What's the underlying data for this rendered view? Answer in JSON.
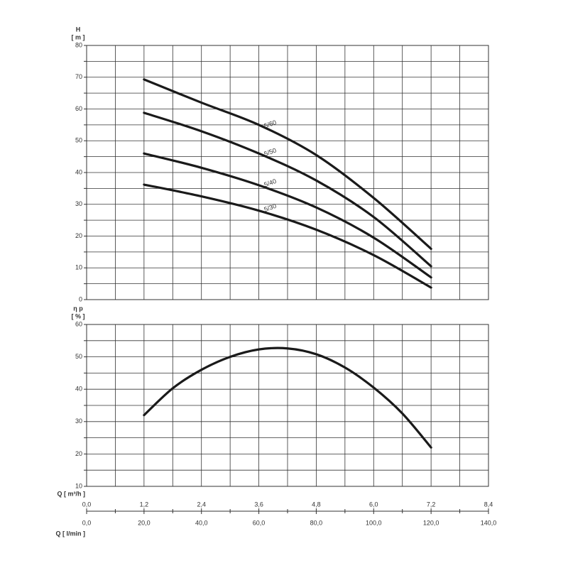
{
  "chart_data": [
    {
      "type": "line",
      "y_label_1": "H",
      "y_label_2": "[ m ]",
      "x": [
        1.2,
        2.4,
        3.6,
        4.8,
        6.0,
        7.2
      ],
      "series": [
        {
          "name": "5/60",
          "color": "#1a1a1a",
          "values": [
            69.3,
            62,
            55,
            45.5,
            32,
            16
          ]
        },
        {
          "name": "5/50",
          "color": "#1a1a1a",
          "values": [
            58.8,
            53,
            46,
            37.5,
            26,
            10.5
          ]
        },
        {
          "name": "5/40",
          "color": "#1a1a1a",
          "values": [
            46,
            41.5,
            36,
            29,
            19.5,
            7
          ]
        },
        {
          "name": "5/30",
          "color": "#1a1a1a",
          "values": [
            36.2,
            32.5,
            28,
            22,
            14,
            3.8
          ]
        }
      ],
      "xlim": [
        0,
        8.4
      ],
      "xticks": [
        0,
        1.2,
        2.4,
        3.6,
        4.8,
        6.0,
        7.2,
        8.4
      ],
      "ylim": [
        0,
        80
      ],
      "yticks": [
        0,
        10,
        20,
        30,
        40,
        50,
        60,
        70,
        80
      ],
      "grid": true
    },
    {
      "type": "line",
      "y_label_1": "η p",
      "y_label_2": "[ % ]",
      "x": [
        1.2,
        1.8,
        2.4,
        3.0,
        3.6,
        4.2,
        4.8,
        5.4,
        6.0,
        6.6,
        7.2
      ],
      "series": [
        {
          "name": null,
          "color": "#1a1a1a",
          "values": [
            32,
            40.3,
            46,
            50,
            52.3,
            52.6,
            50.8,
            46.7,
            40.5,
            32.5,
            22
          ]
        }
      ],
      "x_label": "Q [ m³/h ]",
      "x2_label": "Q [ l/min ]",
      "xlim": [
        0,
        8.4
      ],
      "xticks": [
        {
          "value": 0,
          "label": "0,0"
        },
        {
          "value": 1.2,
          "label": "1,2"
        },
        {
          "value": 2.4,
          "label": "2,4"
        },
        {
          "value": 3.6,
          "label": "3,6"
        },
        {
          "value": 4.8,
          "label": "4,8"
        },
        {
          "value": 6.0,
          "label": "6,0"
        },
        {
          "value": 7.2,
          "label": "7,2"
        },
        {
          "value": 8.4,
          "label": "8,4"
        }
      ],
      "x2lim": [
        0,
        140
      ],
      "x2ticks": [
        {
          "value": 0,
          "label": "0,0"
        },
        {
          "value": 20,
          "label": "20,0"
        },
        {
          "value": 40,
          "label": "40,0"
        },
        {
          "value": 60,
          "label": "60,0"
        },
        {
          "value": 80,
          "label": "80,0"
        },
        {
          "value": 100,
          "label": "100,0"
        },
        {
          "value": 120,
          "label": "120,0"
        },
        {
          "value": 140,
          "label": "140,0"
        }
      ],
      "ylim": [
        10,
        60
      ],
      "yticks": [
        10,
        20,
        30,
        40,
        50,
        60
      ],
      "grid": true
    }
  ]
}
